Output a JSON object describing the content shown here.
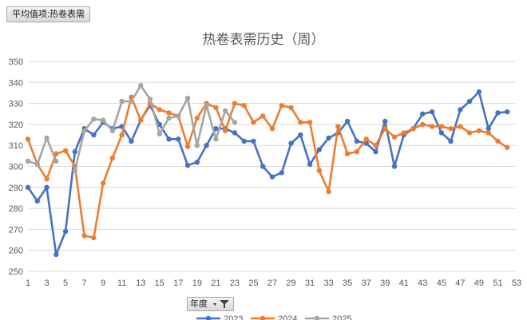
{
  "pivot": {
    "value_field_label": "平均值项:热卷表需",
    "filter_field_label": "年度"
  },
  "colors": {
    "series_2023": "#4472C4",
    "series_2024": "#ED7D31",
    "series_2025": "#A5A5A5",
    "grid": "#d9d9d9",
    "text": "#595959"
  },
  "chart_data": {
    "type": "line",
    "title": "热卷表需历史（周）",
    "x_range": [
      1,
      53
    ],
    "x_ticks": [
      1,
      3,
      5,
      7,
      9,
      11,
      13,
      15,
      17,
      19,
      21,
      23,
      25,
      27,
      29,
      31,
      33,
      35,
      37,
      39,
      41,
      43,
      45,
      47,
      49,
      51,
      53
    ],
    "ylim": [
      250,
      350
    ],
    "y_ticks": [
      250,
      260,
      270,
      280,
      290,
      300,
      310,
      320,
      330,
      340,
      350
    ],
    "grid": true,
    "legend_position": "bottom",
    "series": [
      {
        "name": "2023",
        "x": [
          1,
          2,
          3,
          4,
          5,
          6,
          7,
          8,
          9,
          10,
          11,
          12,
          13,
          14,
          15,
          16,
          17,
          18,
          19,
          20,
          21,
          22,
          23,
          24,
          25,
          26,
          27,
          28,
          29,
          30,
          31,
          32,
          33,
          34,
          35,
          36,
          37,
          38,
          39,
          40,
          41,
          42,
          43,
          44,
          45,
          46,
          47,
          48,
          49,
          50,
          51,
          52
        ],
        "values": [
          290,
          283.5,
          290,
          258,
          269,
          307,
          318,
          315,
          321,
          318,
          319,
          312,
          322,
          329,
          320,
          313,
          313,
          300.5,
          302,
          310,
          318,
          318,
          316,
          312,
          312,
          300,
          295,
          297,
          311,
          315,
          301,
          308,
          313.5,
          316,
          321.5,
          312,
          311,
          307,
          321.5,
          300,
          315,
          318,
          325,
          326,
          316,
          312,
          327,
          331,
          335.5,
          318,
          325.5,
          326
        ]
      },
      {
        "name": "2024",
        "x": [
          1,
          2,
          3,
          4,
          5,
          6,
          7,
          8,
          9,
          10,
          11,
          12,
          13,
          14,
          15,
          16,
          17,
          18,
          19,
          20,
          21,
          22,
          23,
          24,
          25,
          26,
          27,
          28,
          29,
          30,
          31,
          32,
          33,
          34,
          35,
          36,
          37,
          38,
          39,
          40,
          41,
          42,
          43,
          44,
          45,
          46,
          47,
          48,
          49,
          50,
          51,
          52
        ],
        "values": [
          313,
          301,
          294,
          306,
          307.5,
          300,
          267,
          266,
          292,
          304,
          315,
          333,
          322,
          330,
          327,
          325.5,
          324,
          309.5,
          323,
          330,
          328,
          317,
          330,
          329,
          321,
          324,
          318,
          329,
          328,
          321,
          321,
          298,
          288,
          319,
          306,
          307,
          313,
          310,
          318,
          314,
          316,
          318,
          320,
          319,
          319,
          318,
          319,
          316,
          317,
          316,
          312,
          309
        ]
      },
      {
        "name": "2025",
        "x": [
          1,
          2,
          3,
          4,
          5,
          6,
          7,
          8,
          9,
          10,
          11,
          12,
          13,
          14,
          15,
          16,
          17,
          18,
          19,
          20,
          21,
          22,
          23
        ],
        "values": [
          302.5,
          301,
          313.5,
          302.5,
          null,
          298,
          317,
          322.5,
          322,
          317,
          331,
          331,
          338.5,
          332,
          315.5,
          323,
          324,
          332.5,
          310,
          329,
          313,
          326.5,
          321
        ]
      }
    ]
  }
}
